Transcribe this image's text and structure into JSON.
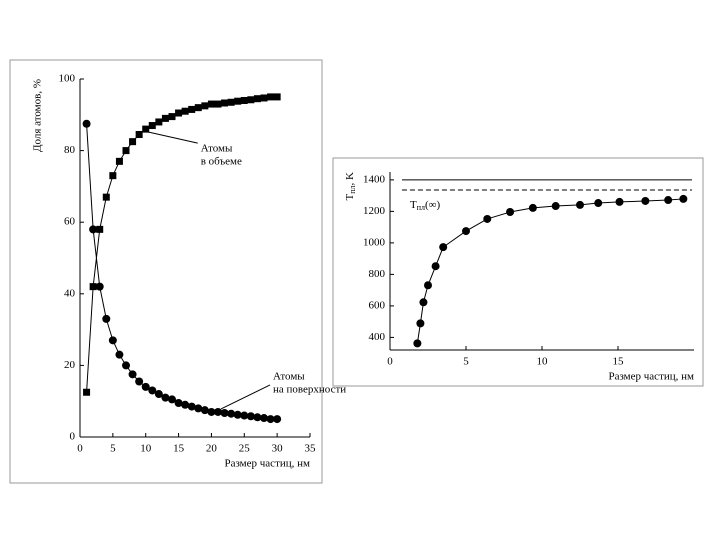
{
  "chart_data": [
    {
      "type": "line",
      "marker_series": true,
      "xlabel": "Размер частиц, нм",
      "ylabel": "Доля атомов, %",
      "xlim": [
        0,
        35
      ],
      "ylim": [
        0,
        100
      ],
      "xticks": [
        0,
        5,
        10,
        15,
        20,
        25,
        30,
        35
      ],
      "yticks": [
        0,
        20,
        40,
        60,
        80,
        100
      ],
      "x": [
        1,
        2,
        3,
        4,
        5,
        6,
        7,
        8,
        9,
        10,
        11,
        12,
        13,
        14,
        15,
        16,
        17,
        18,
        19,
        20,
        21,
        22,
        23,
        24,
        25,
        26,
        27,
        28,
        29,
        30
      ],
      "series": [
        {
          "name": [
            "Атомы",
            "в объеме"
          ],
          "marker": "square",
          "color": "#000000",
          "values": [
            12.5,
            42,
            58,
            67,
            73,
            77,
            80,
            82.5,
            84.5,
            86,
            87,
            88,
            89,
            89.5,
            90.5,
            91,
            91.5,
            92,
            92.5,
            93,
            93,
            93.3,
            93.5,
            93.8,
            94,
            94.2,
            94.5,
            94.7,
            95,
            95
          ]
        },
        {
          "name": [
            "Атомы",
            "на поверхности"
          ],
          "marker": "circle",
          "color": "#000000",
          "values": [
            87.5,
            58,
            42,
            33,
            27,
            23,
            20,
            17.5,
            15.5,
            14,
            13,
            12,
            11,
            10.5,
            9.5,
            9,
            8.5,
            8,
            7.5,
            7,
            7,
            6.7,
            6.5,
            6.2,
            6,
            5.8,
            5.5,
            5.3,
            5,
            5
          ]
        }
      ]
    },
    {
      "type": "line",
      "xlabel": "Размер частиц, нм",
      "ylabel": {
        "main": "T",
        "sub": "пл",
        "rest": ", K"
      },
      "annotation": {
        "main": "T",
        "sub": "пл",
        "rest": "(∞)"
      },
      "xlim": [
        0,
        20
      ],
      "ylim": [
        320,
        1450
      ],
      "xticks": [
        0,
        5,
        10,
        15
      ],
      "yticks": [
        400,
        600,
        800,
        1000,
        1200,
        1400
      ],
      "hlines": [
        {
          "value": 1400,
          "style": "solid"
        },
        {
          "value": 1336,
          "style": "dashed"
        }
      ],
      "x": [
        1.8,
        2.0,
        2.2,
        2.5,
        3.0,
        3.5,
        5.0,
        6.4,
        7.9,
        9.4,
        10.9,
        12.5,
        13.7,
        15.1,
        16.8,
        18.3,
        19.3
      ],
      "series": [
        {
          "marker": "circle",
          "color": "#000000",
          "values": [
            362,
            489,
            623,
            731,
            852,
            973,
            1075,
            1152,
            1196,
            1222,
            1234,
            1241,
            1253,
            1260,
            1266,
            1272,
            1279
          ]
        }
      ]
    }
  ]
}
